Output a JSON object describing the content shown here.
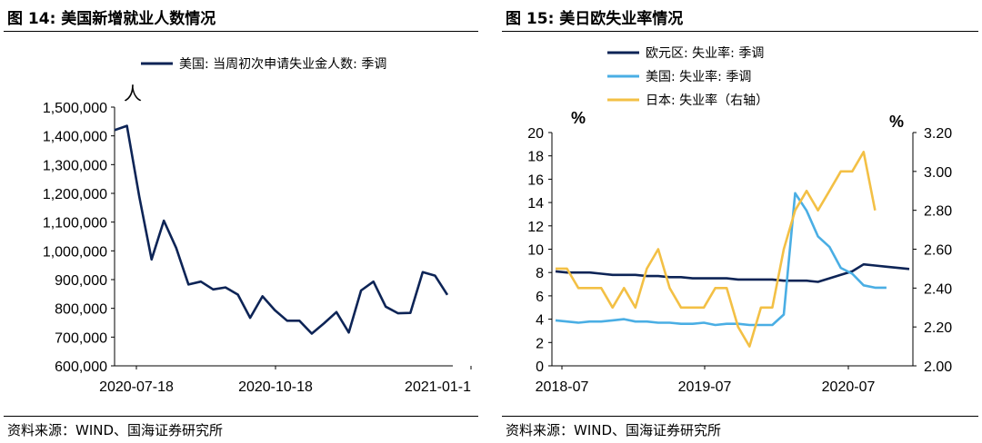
{
  "left": {
    "title": "图 14:  美国新增就业人数情况",
    "source": "资料来源：WIND、国海证券研究所",
    "chart_data": {
      "type": "line",
      "unit": "人",
      "ylim": [
        600000,
        1500000
      ],
      "yticks": [
        "600,000",
        "700,000",
        "800,000",
        "900,000",
        "1,000,000",
        "1,100,000",
        "1,200,000",
        "1,300,000",
        "1,400,000",
        "1,500,000"
      ],
      "xtick_labels": [
        "2020-07-18",
        "2020-10-18",
        "2021-01-1"
      ],
      "series": [
        {
          "name": "美国: 当周初次申请失业金人数: 季调",
          "color": "#0d2456",
          "values": [
            1420000,
            1435000,
            1190000,
            970000,
            1105000,
            1010000,
            883000,
            893000,
            866000,
            873000,
            848000,
            767000,
            842000,
            794000,
            757000,
            757000,
            712000,
            748000,
            787000,
            716000,
            862000,
            893000,
            806000,
            783000,
            784000,
            926000,
            914000,
            847000
          ]
        }
      ]
    }
  },
  "right": {
    "title": "图 15:  美日欧失业率情况",
    "source": "资料来源：WIND、国海证券研究所",
    "chart_data": {
      "type": "line",
      "y_left_unit": "%",
      "y_right_unit": "%",
      "ylim_left": [
        0,
        20
      ],
      "ylim_right": [
        2.0,
        3.2
      ],
      "yticks_left": [
        "0",
        "2",
        "4",
        "6",
        "8",
        "10",
        "12",
        "14",
        "16",
        "18",
        "20"
      ],
      "yticks_right": [
        "2.00",
        "2.20",
        "2.40",
        "2.60",
        "2.80",
        "3.00",
        "3.20"
      ],
      "xtick_labels": [
        "2018-07",
        "2019-07",
        "2020-07"
      ],
      "series": [
        {
          "name": "欧元区: 失业率: 季调",
          "color": "#0d2456",
          "axis": "left",
          "values": [
            8.1,
            8.0,
            8.0,
            8.0,
            7.9,
            7.8,
            7.8,
            7.8,
            7.7,
            7.7,
            7.6,
            7.6,
            7.5,
            7.5,
            7.5,
            7.5,
            7.4,
            7.4,
            7.4,
            7.4,
            7.3,
            7.3,
            7.3,
            7.2,
            7.5,
            7.8,
            8.1,
            8.7,
            8.6,
            8.5,
            8.4,
            8.3
          ]
        },
        {
          "name": "美国: 失业率: 季调",
          "color": "#4aaee4",
          "axis": "left",
          "values": [
            3.9,
            3.8,
            3.7,
            3.8,
            3.8,
            3.9,
            4.0,
            3.8,
            3.8,
            3.7,
            3.7,
            3.6,
            3.6,
            3.7,
            3.5,
            3.6,
            3.6,
            3.5,
            3.5,
            3.5,
            4.4,
            14.8,
            13.3,
            11.1,
            10.2,
            8.4,
            7.9,
            6.9,
            6.7,
            6.7
          ]
        },
        {
          "name": "日本: 失业率（右轴）",
          "color": "#f3c045",
          "axis": "right",
          "values": [
            2.5,
            2.5,
            2.4,
            2.4,
            2.4,
            2.3,
            2.4,
            2.3,
            2.5,
            2.6,
            2.4,
            2.3,
            2.3,
            2.3,
            2.4,
            2.4,
            2.2,
            2.1,
            2.3,
            2.3,
            2.6,
            2.8,
            2.9,
            2.8,
            2.9,
            3.0,
            3.0,
            3.1,
            2.8
          ]
        }
      ]
    }
  }
}
